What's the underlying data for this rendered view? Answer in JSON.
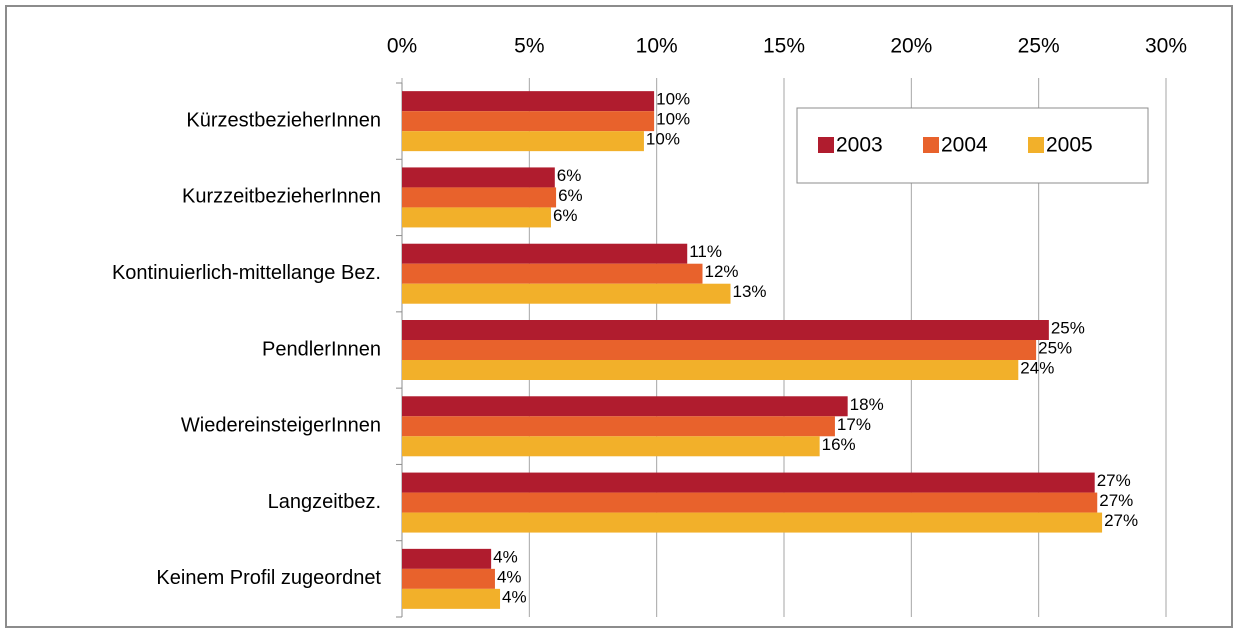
{
  "chart_data": {
    "type": "hbar",
    "categories": [
      "KürzestbezieherInnen",
      "KurzzeitbezieherInnen",
      "Kontinuierlich-mittellange Bez.",
      "PendlerInnen",
      "WiedereinsteigerInnen",
      "Langzeitbez.",
      "Keinem Profil zugeordnet"
    ],
    "series": [
      {
        "name": "2003",
        "color": "#b01c2e",
        "values": [
          9.9,
          6.0,
          11.2,
          25.4,
          17.5,
          27.2,
          3.5
        ],
        "value_labels": [
          "10%",
          "6%",
          "11%",
          "25%",
          "18%",
          "27%",
          "4%"
        ]
      },
      {
        "name": "2004",
        "color": "#e8622c",
        "values": [
          9.9,
          6.05,
          11.8,
          24.9,
          17.0,
          27.3,
          3.65
        ],
        "value_labels": [
          "10%",
          "6%",
          "12%",
          "25%",
          "17%",
          "27%",
          "4%"
        ]
      },
      {
        "name": "2005",
        "color": "#f2b02a",
        "values": [
          9.5,
          5.85,
          12.9,
          24.2,
          16.4,
          27.49,
          3.85
        ],
        "value_labels": [
          "10%",
          "6%",
          "13%",
          "24%",
          "16%",
          "27%",
          "4%"
        ]
      }
    ],
    "xlim": [
      0,
      30
    ],
    "xticks": [
      {
        "value": 0,
        "label": "0%"
      },
      {
        "value": 5,
        "label": "5%"
      },
      {
        "value": 10,
        "label": "10%"
      },
      {
        "value": 15,
        "label": "15%"
      },
      {
        "value": 20,
        "label": "20%"
      },
      {
        "value": 25,
        "label": "25%"
      },
      {
        "value": 30,
        "label": "30%"
      }
    ],
    "grid": true,
    "legend": "top-right"
  }
}
